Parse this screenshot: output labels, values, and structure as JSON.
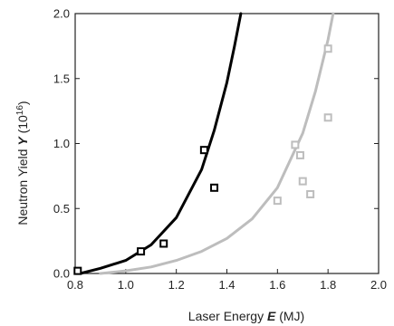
{
  "chart_data": {
    "type": "scatter",
    "xlabel": {
      "pre": "Laser Energy ",
      "var": "E",
      "post": " (MJ)"
    },
    "ylabel": {
      "pre": "Neutron Yield ",
      "var": "Y",
      "post": " (10",
      "exp": "16",
      "close": ")"
    },
    "xlim": [
      0.8,
      2.0
    ],
    "ylim": [
      0.0,
      2.0
    ],
    "xticks": [
      "0.8",
      "1.0",
      "1.2",
      "1.4",
      "1.6",
      "1.8",
      "2.0"
    ],
    "yticks": [
      "0.0",
      "0.5",
      "1.0",
      "1.5",
      "2.0"
    ],
    "grid": false,
    "series": [
      {
        "color": "#000000",
        "points": [
          {
            "x": 0.81,
            "y": 0.02
          },
          {
            "x": 1.06,
            "y": 0.17
          },
          {
            "x": 1.15,
            "y": 0.23
          },
          {
            "x": 1.31,
            "y": 0.95
          },
          {
            "x": 1.35,
            "y": 0.66
          }
        ],
        "curve": [
          {
            "x": 0.82,
            "y": 0.0
          },
          {
            "x": 0.9,
            "y": 0.04
          },
          {
            "x": 1.0,
            "y": 0.1
          },
          {
            "x": 1.1,
            "y": 0.22
          },
          {
            "x": 1.2,
            "y": 0.43
          },
          {
            "x": 1.3,
            "y": 0.8
          },
          {
            "x": 1.35,
            "y": 1.1
          },
          {
            "x": 1.4,
            "y": 1.47
          },
          {
            "x": 1.43,
            "y": 1.75
          },
          {
            "x": 1.455,
            "y": 2.0
          }
        ]
      },
      {
        "color": "#bdbdbd",
        "points": [
          {
            "x": 1.6,
            "y": 0.56
          },
          {
            "x": 1.67,
            "y": 0.99
          },
          {
            "x": 1.69,
            "y": 0.91
          },
          {
            "x": 1.7,
            "y": 0.71
          },
          {
            "x": 1.73,
            "y": 0.61
          },
          {
            "x": 1.8,
            "y": 1.73
          },
          {
            "x": 1.8,
            "y": 1.2
          }
        ],
        "curve": [
          {
            "x": 0.9,
            "y": 0.0
          },
          {
            "x": 1.0,
            "y": 0.02
          },
          {
            "x": 1.1,
            "y": 0.05
          },
          {
            "x": 1.2,
            "y": 0.1
          },
          {
            "x": 1.3,
            "y": 0.17
          },
          {
            "x": 1.4,
            "y": 0.27
          },
          {
            "x": 1.5,
            "y": 0.42
          },
          {
            "x": 1.6,
            "y": 0.66
          },
          {
            "x": 1.7,
            "y": 1.08
          },
          {
            "x": 1.75,
            "y": 1.4
          },
          {
            "x": 1.8,
            "y": 1.8
          },
          {
            "x": 1.82,
            "y": 2.0
          }
        ]
      }
    ]
  }
}
